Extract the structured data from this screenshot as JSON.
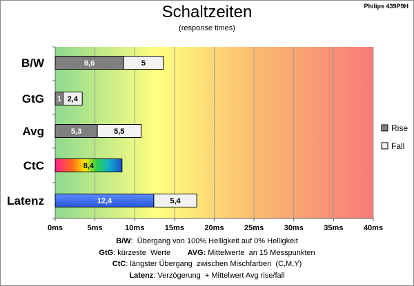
{
  "header": {
    "model": "Philips 439P9H"
  },
  "chart_data": {
    "type": "bar",
    "orientation": "horizontal",
    "stacked": true,
    "title": "Schaltzeiten",
    "subtitle": "(response times)",
    "xlim": [
      0,
      40
    ],
    "xticks": [
      0,
      5,
      10,
      15,
      20,
      25,
      30,
      35,
      40
    ],
    "xtick_labels": [
      "0ms",
      "5ms",
      "10ms",
      "15ms",
      "20ms",
      "25ms",
      "30ms",
      "35ms",
      "40ms"
    ],
    "grid": true,
    "legend_position": "right",
    "categories": [
      "B/W",
      "GtG",
      "Avg",
      "CtC",
      "Latenz"
    ],
    "series": [
      {
        "name": "Rise",
        "values": [
          8.6,
          1,
          5.3,
          8.4,
          12.4
        ],
        "labels": [
          "8,6",
          "1",
          "5,3",
          "8,4",
          "12,4"
        ],
        "color": "#7f7f7f"
      },
      {
        "name": "Fall",
        "values": [
          5,
          2.4,
          5.5,
          null,
          5.4
        ],
        "labels": [
          "5",
          "2,4",
          "5,5",
          "",
          "5,4"
        ],
        "color": "#f2f2f2"
      }
    ],
    "special_fills": {
      "CtC": "rainbow",
      "Latenz": "#3366ff"
    }
  },
  "notes": {
    "l1": {
      "key": "B/W",
      "text": ":  Übergang von 100% Helligkeit auf 0% Helligkeit"
    },
    "l2": {
      "key": "GtG",
      "text": ": kürzeste  Werte        ",
      "key2": "AVG:",
      "text2": " Mittelwerte  an 15 Messpunkten"
    },
    "l3": {
      "key": "CtC",
      "text": ": längster Übergang  zwischen Mischfarben  (C,M,Y)"
    },
    "l4": {
      "key": "Latenz",
      "text": ": Verzögerung  + Mittelwert Avg rise/fall"
    }
  }
}
